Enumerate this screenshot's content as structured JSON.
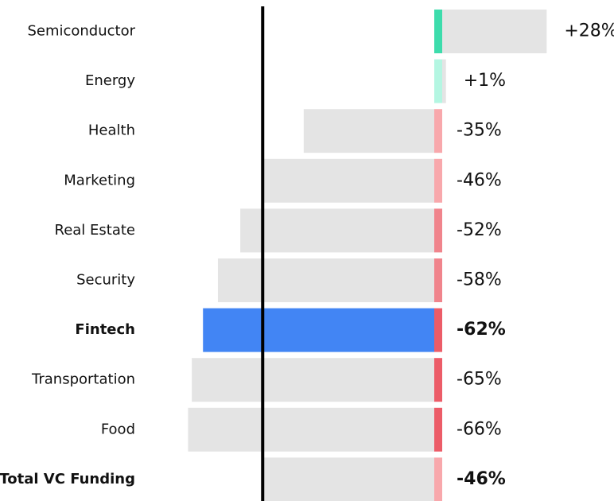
{
  "chart_data": {
    "type": "bar",
    "orientation": "horizontal",
    "categories": [
      "Semiconductor",
      "Energy",
      "Health",
      "Marketing",
      "Real Estate",
      "Security",
      "Fintech",
      "Transportation",
      "Food",
      "Total VC Funding"
    ],
    "values": [
      28,
      1,
      -35,
      -46,
      -52,
      -58,
      -62,
      -65,
      -66,
      -46
    ],
    "value_labels": [
      "+28%",
      "+1%",
      "-35%",
      "-46%",
      "-52%",
      "-58%",
      "-62%",
      "-65%",
      "-66%",
      "-46%"
    ],
    "color": "#e4e4e4",
    "bar_colors": [
      "#e4e4e4",
      "#e4e4e4",
      "#e4e4e4",
      "#e4e4e4",
      "#e4e4e4",
      "#e4e4e4",
      "#4285f4",
      "#e4e4e4",
      "#e4e4e4",
      "#e4e4e4"
    ],
    "strip_colors": [
      "#3ddcac",
      "#b4f6e2",
      "#f8a8ac",
      "#f8a8ac",
      "#f0848c",
      "#f0848c",
      "#ec5c68",
      "#ec5c68",
      "#ec5c68",
      "#f8a8ac"
    ],
    "bold": [
      false,
      false,
      false,
      false,
      false,
      false,
      true,
      false,
      false,
      true
    ],
    "reference_line_color": "#000000"
  }
}
